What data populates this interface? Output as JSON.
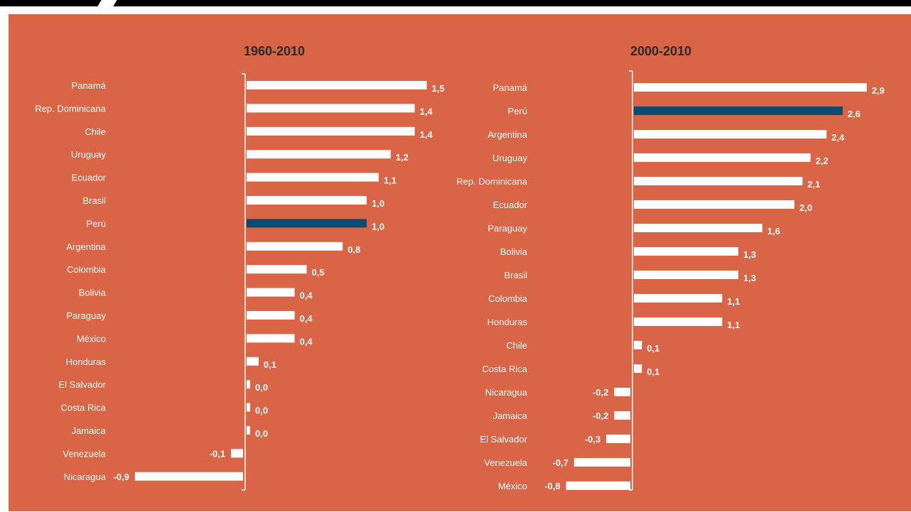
{
  "colors": {
    "panel_bg": "#d96446",
    "bar": "#ffffff",
    "highlight_bar": "#0b4a73",
    "text": "#ffffff",
    "title": "#2b2b2b"
  },
  "chart_data": [
    {
      "type": "bar",
      "orientation": "horizontal",
      "title": "1960-2010",
      "categories": [
        "Panamá",
        "Rep. Dominicana",
        "Chile",
        "Uruguay",
        "Ecuador",
        "Brasil",
        "Perú",
        "Argentina",
        "Colombia",
        "Bolivia",
        "Paraguay",
        "México",
        "Honduras",
        "El Salvador",
        "Costa Rica",
        "Jamaica",
        "Venezuela",
        "Nicaragua"
      ],
      "values": [
        1.5,
        1.4,
        1.4,
        1.2,
        1.1,
        1.0,
        1.0,
        0.8,
        0.5,
        0.4,
        0.4,
        0.4,
        0.1,
        0.0,
        0.0,
        0.0,
        -0.1,
        -0.9
      ],
      "value_labels": [
        "1,5",
        "1,4",
        "1,4",
        "1,2",
        "1,1",
        "1,0",
        "1,0",
        "0,8",
        "0,5",
        "0,4",
        "0,4",
        "0,4",
        "0,1",
        "0,0",
        "0,0",
        "0,0",
        "-0,1",
        "-0,9"
      ],
      "highlight": "Perú"
    },
    {
      "type": "bar",
      "orientation": "horizontal",
      "title": "2000-2010",
      "categories": [
        "Panamá",
        "Perú",
        "Argentina",
        "Uruguay",
        "Rep. Dominicana",
        "Ecuador",
        "Paraguay",
        "Bolivia",
        "Brasil",
        "Colombia",
        "Honduras",
        "Chile",
        "Costa Rica",
        "Nicaragua",
        "Jamaica",
        "El Salvador",
        "Venezuela",
        "México"
      ],
      "values": [
        2.9,
        2.6,
        2.4,
        2.2,
        2.1,
        2.0,
        1.6,
        1.3,
        1.3,
        1.1,
        1.1,
        0.1,
        0.1,
        -0.2,
        -0.2,
        -0.3,
        -0.7,
        -0.8
      ],
      "value_labels": [
        "2,9",
        "2,6",
        "2,4",
        "2,2",
        "2,1",
        "2,0",
        "1,6",
        "1,3",
        "1,3",
        "1,1",
        "1,1",
        "0,1",
        "0,1",
        "-0,2",
        "-0,2",
        "-0,3",
        "-0,7",
        "-0,8"
      ],
      "highlight": "Perú"
    }
  ]
}
